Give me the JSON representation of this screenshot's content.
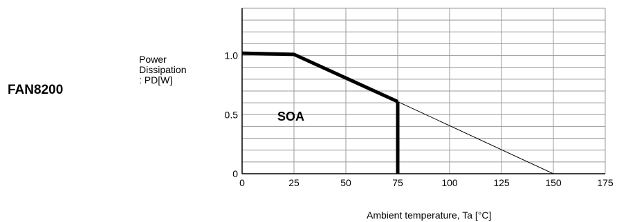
{
  "part_label": "FAN8200",
  "chart_data": {
    "type": "line",
    "ylabel_lines": [
      "Power",
      "Dissipation",
      ": PD[W]"
    ],
    "xlabel": "Ambient temperature, Ta [°C]",
    "xlim": [
      0,
      175
    ],
    "ylim": [
      0,
      1.4
    ],
    "x_ticks": [
      0,
      25,
      50,
      75,
      100,
      125,
      150,
      175
    ],
    "x_tick_labels": [
      "0",
      "25",
      "50",
      "75",
      "100",
      "125",
      "150",
      "175"
    ],
    "y_ticks": [
      0,
      0.5,
      1.0
    ],
    "y_tick_labels": [
      "0",
      "0.5",
      "1.0"
    ],
    "x_grid_step": 25,
    "y_grid_step": 0.1,
    "grid": true,
    "series": [
      {
        "style": "thick",
        "points": [
          [
            0,
            1.02
          ],
          [
            25,
            1.01
          ],
          [
            75,
            0.61
          ]
        ]
      },
      {
        "style": "thick",
        "points": [
          [
            75,
            0.61
          ],
          [
            75,
            0
          ]
        ]
      },
      {
        "style": "thin",
        "points": [
          [
            75,
            0.61
          ],
          [
            150,
            0
          ]
        ]
      }
    ],
    "annotations": [
      {
        "text": "SOA",
        "x": 17,
        "y": 0.45
      }
    ]
  }
}
